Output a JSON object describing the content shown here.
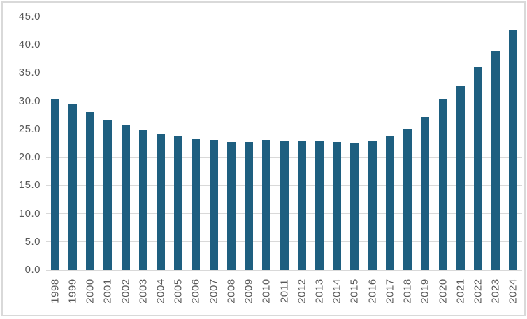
{
  "chart_data": {
    "type": "bar",
    "title": "",
    "xlabel": "",
    "ylabel": "",
    "categories": [
      "1998",
      "1999",
      "2000",
      "2001",
      "2002",
      "2003",
      "2004",
      "2005",
      "2006",
      "2007",
      "2008",
      "2009",
      "2010",
      "2011",
      "2012",
      "2013",
      "2014",
      "2015",
      "2016",
      "2017",
      "2018",
      "2019",
      "2020",
      "2021",
      "2022",
      "2023",
      "2024"
    ],
    "values": [
      30.4,
      29.5,
      28.1,
      26.7,
      25.8,
      24.9,
      24.3,
      23.7,
      23.3,
      23.1,
      22.8,
      22.7,
      23.1,
      22.9,
      22.9,
      22.9,
      22.7,
      22.6,
      23.0,
      23.9,
      25.1,
      27.2,
      30.5,
      32.7,
      36.0,
      38.9,
      42.7
    ],
    "ylim": [
      0,
      45
    ],
    "ytick_step": 5,
    "ytick_labels": [
      "0.0",
      "5.0",
      "10.0",
      "15.0",
      "20.0",
      "25.0",
      "30.0",
      "35.0",
      "40.0",
      "45.0"
    ],
    "grid": true,
    "legend": false,
    "bar_color": "#1E5F80",
    "gridline_color": "#D9D9D9",
    "axis_label_color": "#595959",
    "border_color": "#D9D9D9",
    "background": "#FFFFFF"
  }
}
